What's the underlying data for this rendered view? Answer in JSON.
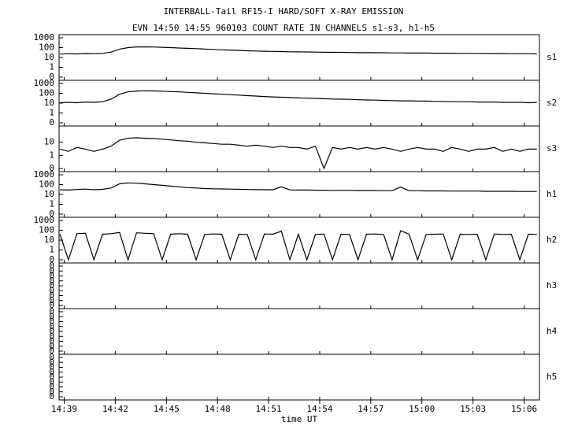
{
  "chart_data": {
    "type": "line",
    "title": "INTERBALL-Tail RF15-I HARD/SOFT X-RAY EMISSION",
    "subtitle": "EVN 14:50 14:55 960103  COUNT RATE IN CHANNELS s1-s3, h1-h5",
    "xlabel": "time UT",
    "xlim": [
      878.7,
      906.9
    ],
    "xticks": [
      {
        "value": 879,
        "label": "14:39"
      },
      {
        "value": 882,
        "label": "14:42"
      },
      {
        "value": 885,
        "label": "14:45"
      },
      {
        "value": 888,
        "label": "14:48"
      },
      {
        "value": 891,
        "label": "14:51"
      },
      {
        "value": 894,
        "label": "14:54"
      },
      {
        "value": 897,
        "label": "14:57"
      },
      {
        "value": 900,
        "label": "15:00"
      },
      {
        "value": 903,
        "label": "15:03"
      },
      {
        "value": 906,
        "label": "15:06"
      }
    ],
    "x": [
      878.75,
      879.25,
      879.75,
      880.25,
      880.75,
      881.25,
      881.75,
      882.25,
      882.75,
      883.25,
      883.75,
      884.25,
      884.75,
      885.25,
      885.75,
      886.25,
      886.75,
      887.25,
      887.75,
      888.25,
      888.75,
      889.25,
      889.75,
      890.25,
      890.75,
      891.25,
      891.75,
      892.25,
      892.75,
      893.25,
      893.75,
      894.25,
      894.75,
      895.25,
      895.75,
      896.25,
      896.75,
      897.25,
      897.75,
      898.25,
      898.75,
      899.25,
      899.75,
      900.25,
      900.75,
      901.25,
      901.75,
      902.25,
      902.75,
      903.25,
      903.75,
      904.25,
      904.75,
      905.25,
      905.75,
      906.25,
      906.75
    ],
    "panels": [
      {
        "log": true,
        "ylim": [
          0.1,
          1000
        ],
        "yticks": [
          1000,
          100,
          10,
          1,
          {
            "value": 0.1,
            "label": "0"
          }
        ],
        "series": [
          {
            "name": "s1",
            "color": "#000000",
            "values": [
              22,
              24,
              23,
              25,
              24,
              26,
              35,
              70,
              100,
              118,
              120,
              115,
              108,
              100,
              92,
              85,
              78,
              72,
              66,
              60,
              56,
              52,
              48,
              45,
              43,
              41,
              40,
              38,
              37,
              36,
              35,
              34,
              33,
              33,
              32,
              31,
              31,
              30,
              30,
              29,
              29,
              28,
              28,
              28,
              27,
              27,
              27,
              26,
              26,
              26,
              25,
              25,
              25,
              24,
              24,
              24,
              23
            ]
          }
        ]
      },
      {
        "log": true,
        "ylim": [
          0.1,
          1000
        ],
        "yticks": [
          1000,
          100,
          10,
          1,
          {
            "value": 0.1,
            "label": "0"
          }
        ],
        "series": [
          {
            "name": "s2",
            "color": "#000000",
            "values": [
              11,
              12,
              11,
              13,
              12,
              14,
              25,
              80,
              140,
              170,
              180,
              175,
              165,
              150,
              140,
              125,
              112,
              100,
              90,
              80,
              72,
              65,
              58,
              52,
              47,
              43,
              40,
              37,
              34,
              32,
              30,
              28,
              26,
              25,
              24,
              22,
              21,
              20,
              19,
              18,
              17,
              17,
              16,
              16,
              15,
              15,
              14,
              14,
              14,
              13,
              13,
              13,
              12,
              12,
              12,
              11,
              12
            ]
          }
        ]
      },
      {
        "log": true,
        "ylim": [
          0.1,
          100
        ],
        "yticks": [
          10,
          1,
          {
            "value": 0.1,
            "label": "0"
          }
        ],
        "series": [
          {
            "name": "s3",
            "color": "#000000",
            "values": [
              3,
              2,
              4,
              3,
              2,
              3,
              5,
              14,
              20,
              22,
              20,
              19,
              17,
              15,
              13,
              12,
              10,
              9,
              8,
              7,
              7,
              6,
              5,
              6,
              5,
              4,
              5,
              4,
              4,
              3,
              5,
              0.1,
              4,
              3,
              4,
              3,
              4,
              3,
              4,
              3,
              2,
              3,
              4,
              3,
              3,
              2,
              4,
              3,
              2,
              3,
              3,
              4,
              2,
              3,
              2,
              3,
              3
            ]
          }
        ]
      },
      {
        "log": true,
        "ylim": [
          0.1,
          1000
        ],
        "yticks": [
          1000,
          100,
          10,
          1,
          {
            "value": 0.1,
            "label": "0"
          }
        ],
        "series": [
          {
            "name": "h1",
            "color": "#000000",
            "values": [
              30,
              28,
              32,
              35,
              30,
              33,
              45,
              120,
              150,
              140,
              120,
              100,
              85,
              70,
              60,
              50,
              45,
              40,
              38,
              36,
              35,
              33,
              32,
              31,
              30,
              30,
              60,
              29,
              28,
              28,
              27,
              27,
              26,
              26,
              26,
              25,
              25,
              25,
              24,
              24,
              55,
              24,
              24,
              23,
              23,
              23,
              22,
              22,
              22,
              22,
              21,
              21,
              21,
              21,
              20,
              20,
              20
            ]
          }
        ]
      },
      {
        "log": true,
        "ylim": [
          0.1,
          1000
        ],
        "yticks": [
          1000,
          100,
          10,
          1,
          {
            "value": 0.1,
            "label": "0"
          }
        ],
        "series": [
          {
            "name": "h2",
            "color": "#000000",
            "values": [
              40,
              0.1,
              45,
              50,
              0.1,
              40,
              45,
              60,
              0.1,
              55,
              50,
              45,
              0.1,
              40,
              45,
              40,
              0.1,
              38,
              42,
              40,
              0.1,
              40,
              38,
              0.1,
              42,
              40,
              80,
              0.1,
              40,
              0.1,
              38,
              42,
              0.1,
              40,
              38,
              0.1,
              40,
              42,
              38,
              0.1,
              90,
              40,
              0.1,
              38,
              40,
              42,
              0.1,
              40,
              38,
              40,
              0.1,
              42,
              38,
              40,
              0.1,
              40,
              38
            ]
          }
        ]
      },
      {
        "log": false,
        "ylim": [
          0,
          0.4
        ],
        "yticks": [
          {
            "value": 0.4,
            "label": "0"
          },
          {
            "value": 0.35,
            "label": "0"
          },
          {
            "value": 0.3,
            "label": "0"
          },
          {
            "value": 0.25,
            "label": "0"
          },
          {
            "value": 0.2,
            "label": "0"
          },
          {
            "value": 0.15,
            "label": "0"
          },
          {
            "value": 0.1,
            "label": "0"
          },
          {
            "value": 0.05,
            "label": "0"
          },
          0
        ],
        "series": [
          {
            "name": "h3",
            "color": "#000000"
          }
        ]
      },
      {
        "log": false,
        "ylim": [
          0,
          0.4
        ],
        "yticks": [
          {
            "value": 0.4,
            "label": "0"
          },
          {
            "value": 0.35,
            "label": "0"
          },
          {
            "value": 0.3,
            "label": "0"
          },
          {
            "value": 0.25,
            "label": "0"
          },
          {
            "value": 0.2,
            "label": "0"
          },
          {
            "value": 0.15,
            "label": "0"
          },
          {
            "value": 0.1,
            "label": "0"
          },
          {
            "value": 0.05,
            "label": "0"
          },
          0
        ],
        "series": [
          {
            "name": "h4",
            "color": "#000000"
          }
        ]
      },
      {
        "log": false,
        "ylim": [
          0,
          0.4
        ],
        "yticks": [
          {
            "value": 0.4,
            "label": "0"
          },
          {
            "value": 0.35,
            "label": "0"
          },
          {
            "value": 0.3,
            "label": "0"
          },
          {
            "value": 0.25,
            "label": "0"
          },
          {
            "value": 0.2,
            "label": "0"
          },
          {
            "value": 0.15,
            "label": "0"
          },
          {
            "value": 0.1,
            "label": "0"
          },
          {
            "value": 0.05,
            "label": "0"
          },
          0
        ],
        "series": [
          {
            "name": "h5",
            "color": "#000000"
          }
        ]
      }
    ]
  }
}
